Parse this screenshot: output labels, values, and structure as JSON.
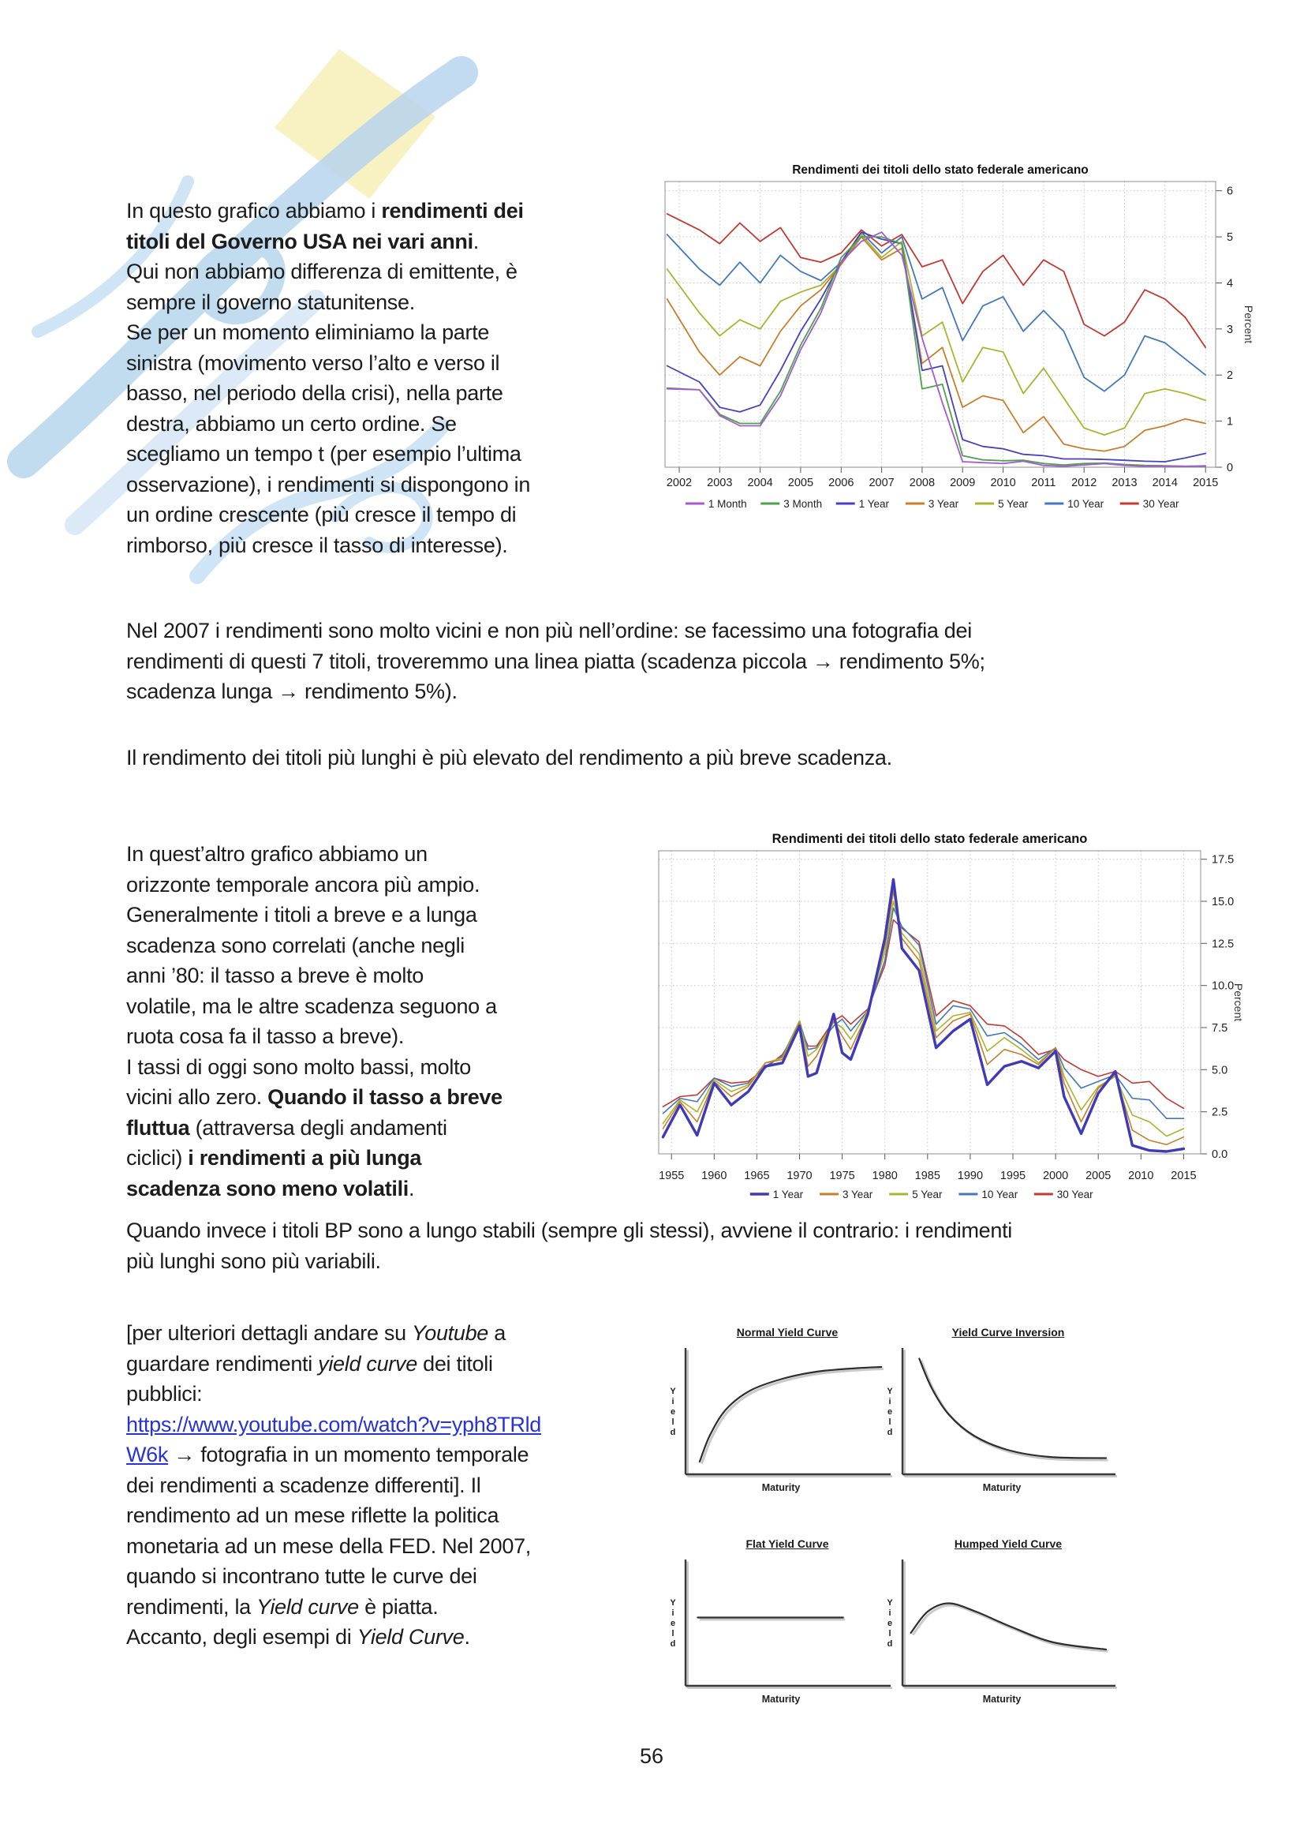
{
  "page": {
    "number": "56"
  },
  "colors": {
    "link": "#2733d6",
    "body_text": "#1c1c1c",
    "watermark_blue": "#b7d5ed",
    "watermark_yellow": "#f8f2c2",
    "chart_grid": "#c4c4c4"
  },
  "paragraphs": {
    "p1": [
      {
        "t": "In questo grafico abbiamo i "
      },
      {
        "t": "rendimenti dei\ntitoli del Governo USA nei vari anni",
        "b": 1
      },
      {
        "t": ".\nQui non abbiamo differenza di emittente, è\nsempre il governo statunitense.\nSe per un momento eliminiamo la parte\nsinistra (movimento verso l’alto e verso il\nbasso, nel periodo della crisi), nella parte\ndestra, abbiamo un certo ordine. Se\nscegliamo un tempo t (per esempio l’ultima\nosservazione), i rendimenti si dispongono in\nun ordine crescente (più cresce il tempo di\nrimborso, più cresce il tasso di interesse)."
      }
    ],
    "p2": [
      {
        "t": "Nel 2007 i rendimenti sono molto vicini e non più nell’ordine: se facessimo una fotografia dei\nrendimenti di questi 7 titoli, troveremmo una linea piatta (scadenza piccola "
      },
      {
        "t": "→",
        "b": 1
      },
      {
        "t": " rendimento 5%;\nscadenza lunga "
      },
      {
        "t": "→",
        "b": 1
      },
      {
        "t": " rendimento 5%)."
      }
    ],
    "p3": [
      {
        "t": "Il rendimento dei titoli più lunghi è più elevato del rendimento a più breve scadenza."
      }
    ],
    "p4a": [
      {
        "t": "In quest’altro grafico abbiamo un\norizzonte temporale ancora più ampio.\nGeneralmente i titoli a breve e a lunga\nscadenza sono correlati (anche negli\nanni ’80: il tasso a breve è molto\nvolatile, ma le altre scadenza seguono a\nruota cosa fa il tasso a breve).\nI tassi di oggi sono molto bassi, molto\nvicini allo zero. "
      },
      {
        "t": "Quando il tasso a breve\nfluttua",
        "b": 1
      },
      {
        "t": " (attraversa degli andamenti\nciclici) "
      },
      {
        "t": "i rendimenti a più lunga\nscadenza sono meno volatili",
        "b": 1
      },
      {
        "t": "."
      }
    ],
    "p4b": [
      {
        "t": "Quando invece i titoli BP sono a lungo stabili (sempre gli stessi), avviene il contrario: i rendimenti\npiù lunghi sono più variabili."
      }
    ],
    "p5": [
      {
        "t": "[per ulteriori dettagli andare su "
      },
      {
        "t": "Youtube",
        "i": 1
      },
      {
        "t": " a\nguardare rendimenti "
      },
      {
        "t": "yield curve",
        "i": 1
      },
      {
        "t": " dei titoli\npubblici:\n"
      },
      {
        "t": "https://www.youtube.com/watch?v=yph8TRld\nW6k",
        "link": 1
      },
      {
        "t": " "
      },
      {
        "t": "→",
        "b": 1
      },
      {
        "t": " fotografia in un momento temporale\ndei rendimenti a scadenze differenti]. Il\nrendimento ad un mese riflette la politica\nmonetaria ad un mese della FED. Nel 2007,\nquando si incontrano tutte le curve dei\nrendimenti, la "
      },
      {
        "t": "Yield curve",
        "i": 1
      },
      {
        "t": " è piatta.\nAccanto, degli esempi di "
      },
      {
        "t": "Yield Curve",
        "i": 1
      },
      {
        "t": "."
      }
    ]
  },
  "chart_data": [
    {
      "type": "line",
      "title": "Rendimenti dei titoli dello stato federale americano",
      "ylabel": "Percent",
      "ylabel_side": "right",
      "grid": true,
      "legend_position": "bottom",
      "xlim": [
        2001.65,
        2015.25
      ],
      "ylim": [
        0,
        6.2
      ],
      "xticks": [
        2002,
        2003,
        2004,
        2005,
        2006,
        2007,
        2008,
        2009,
        2010,
        2011,
        2012,
        2013,
        2014,
        2015
      ],
      "yticks": [
        0,
        1,
        2,
        3,
        4,
        5,
        6
      ],
      "ytick_labels": [
        "0",
        "1",
        "2",
        "3",
        "4",
        "5",
        "6"
      ],
      "x": [
        2001.7,
        2002.5,
        2003,
        2003.5,
        2004,
        2004.5,
        2005,
        2005.5,
        2006,
        2006.5,
        2007,
        2007.5,
        2008,
        2008.5,
        2009,
        2009.5,
        2010,
        2010.5,
        2011,
        2011.5,
        2012,
        2012.5,
        2013,
        2013.5,
        2014,
        2014.5,
        2015
      ],
      "series": [
        {
          "name": "1 Month",
          "color": "#a55bcd",
          "width": 1.8,
          "y": [
            1.7,
            1.68,
            1.12,
            0.9,
            0.9,
            1.55,
            2.55,
            3.35,
            4.45,
            4.9,
            5.1,
            4.6,
            2.8,
            1.4,
            0.12,
            0.1,
            0.08,
            0.13,
            0.04,
            0.02,
            0.05,
            0.08,
            0.04,
            0.02,
            0.02,
            0.02,
            0.02
          ]
        },
        {
          "name": "3 Month",
          "color": "#4ea24e",
          "width": 1.8,
          "y": [
            1.72,
            1.68,
            1.15,
            0.95,
            0.95,
            1.65,
            2.65,
            3.45,
            4.55,
            5.0,
            5.0,
            4.85,
            1.7,
            1.8,
            0.25,
            0.16,
            0.14,
            0.15,
            0.08,
            0.05,
            0.08,
            0.09,
            0.06,
            0.04,
            0.03,
            0.02,
            0.03
          ]
        },
        {
          "name": "1 Year",
          "color": "#4840c0",
          "width": 1.8,
          "y": [
            2.2,
            1.85,
            1.3,
            1.2,
            1.35,
            2.1,
            2.95,
            3.65,
            4.45,
            5.1,
            4.95,
            4.85,
            2.1,
            2.2,
            0.6,
            0.45,
            0.4,
            0.28,
            0.25,
            0.18,
            0.18,
            0.17,
            0.15,
            0.13,
            0.12,
            0.2,
            0.3
          ]
        },
        {
          "name": "3 Year",
          "color": "#c87f2a",
          "width": 1.8,
          "y": [
            3.65,
            2.5,
            2.0,
            2.4,
            2.2,
            2.95,
            3.5,
            3.85,
            4.4,
            5.0,
            4.5,
            4.75,
            2.25,
            2.6,
            1.3,
            1.55,
            1.45,
            0.75,
            1.1,
            0.5,
            0.4,
            0.35,
            0.45,
            0.8,
            0.9,
            1.05,
            0.95
          ]
        },
        {
          "name": "5 Year",
          "color": "#a9b52f",
          "width": 1.8,
          "y": [
            4.3,
            3.35,
            2.85,
            3.2,
            3.0,
            3.6,
            3.8,
            3.95,
            4.4,
            5.05,
            4.55,
            4.9,
            2.85,
            3.15,
            1.85,
            2.6,
            2.5,
            1.6,
            2.15,
            1.5,
            0.85,
            0.7,
            0.85,
            1.6,
            1.7,
            1.6,
            1.45
          ]
        },
        {
          "name": "10 Year",
          "color": "#4478bc",
          "width": 1.8,
          "y": [
            5.05,
            4.3,
            3.95,
            4.45,
            4.0,
            4.6,
            4.25,
            4.05,
            4.45,
            5.1,
            4.65,
            5.0,
            3.65,
            3.9,
            2.75,
            3.5,
            3.7,
            2.95,
            3.4,
            2.95,
            1.95,
            1.65,
            2.0,
            2.85,
            2.7,
            2.35,
            2.0
          ]
        },
        {
          "name": "30 Year",
          "color": "#c23a32",
          "width": 1.8,
          "y": [
            5.5,
            5.15,
            4.85,
            5.3,
            4.9,
            5.2,
            4.55,
            4.45,
            4.65,
            5.15,
            4.8,
            5.05,
            4.35,
            4.5,
            3.55,
            4.25,
            4.6,
            3.95,
            4.5,
            4.25,
            3.1,
            2.85,
            3.15,
            3.85,
            3.65,
            3.25,
            2.6
          ]
        }
      ]
    },
    {
      "type": "line",
      "title": "Rendimenti dei titoli dello stato federale americano",
      "ylabel": "Percent",
      "ylabel_side": "right",
      "grid": true,
      "legend_position": "bottom",
      "xlim": [
        1953.5,
        2017.0
      ],
      "ylim": [
        0,
        18
      ],
      "xticks": [
        1955,
        1960,
        1965,
        1970,
        1975,
        1980,
        1985,
        1990,
        1995,
        2000,
        2005,
        2010,
        2015
      ],
      "yticks": [
        0,
        2.5,
        5,
        7.5,
        10,
        12.5,
        15,
        17.5
      ],
      "ytick_labels": [
        "0.0",
        "2.5",
        "5.0",
        "7.5",
        "10.0",
        "12.5",
        "15.0",
        "17.5"
      ],
      "x": [
        1954,
        1956,
        1958,
        1960,
        1962,
        1964,
        1966,
        1968,
        1970,
        1971,
        1972,
        1974,
        1975,
        1976,
        1978,
        1980,
        1981,
        1982,
        1984,
        1986,
        1988,
        1990,
        1992,
        1994,
        1996,
        1998,
        2000,
        2001,
        2003,
        2005,
        2007,
        2009,
        2011,
        2013,
        2015
      ],
      "series": [
        {
          "name": "1 Year",
          "color": "#3f3ab8",
          "width": 3.4,
          "y": [
            1.0,
            2.9,
            1.1,
            4.2,
            2.9,
            3.7,
            5.2,
            5.4,
            7.6,
            4.6,
            4.8,
            8.3,
            6.0,
            5.6,
            8.3,
            12.8,
            16.3,
            12.2,
            10.9,
            6.3,
            7.3,
            8.0,
            4.1,
            5.2,
            5.5,
            5.1,
            6.1,
            3.4,
            1.2,
            3.6,
            4.9,
            0.5,
            0.2,
            0.14,
            0.3
          ]
        },
        {
          "name": "3 Year",
          "color": "#c87f2a",
          "width": 1.6,
          "y": [
            1.5,
            3.1,
            1.9,
            4.3,
            3.4,
            4.0,
            5.4,
            5.6,
            7.8,
            5.2,
            5.8,
            7.9,
            7.0,
            6.2,
            8.4,
            12.4,
            15.6,
            12.8,
            11.5,
            6.9,
            7.9,
            8.3,
            5.3,
            6.2,
            5.9,
            5.3,
            6.3,
            4.2,
            1.9,
            3.9,
            4.7,
            1.4,
            0.8,
            0.55,
            1.0
          ]
        },
        {
          "name": "5 Year",
          "color": "#a9b52f",
          "width": 1.6,
          "y": [
            1.8,
            3.2,
            2.5,
            4.4,
            3.7,
            4.1,
            5.4,
            5.7,
            7.9,
            5.8,
            6.2,
            7.8,
            7.5,
            6.8,
            8.5,
            12.0,
            15.0,
            13.1,
            11.9,
            7.3,
            8.2,
            8.4,
            6.1,
            6.9,
            6.2,
            5.4,
            6.3,
            4.6,
            2.6,
            4.0,
            4.6,
            2.3,
            1.9,
            1.05,
            1.5
          ]
        },
        {
          "name": "10 Year",
          "color": "#4478bc",
          "width": 1.6,
          "y": [
            2.4,
            3.3,
            3.1,
            4.5,
            4.0,
            4.2,
            5.2,
            5.8,
            7.9,
            6.2,
            6.3,
            7.6,
            8.0,
            7.3,
            8.5,
            11.5,
            14.6,
            13.5,
            12.4,
            7.7,
            8.8,
            8.6,
            7.0,
            7.2,
            6.5,
            5.6,
            6.3,
            5.1,
            3.9,
            4.3,
            4.7,
            3.3,
            3.2,
            2.1,
            2.1
          ]
        },
        {
          "name": "30 Year",
          "color": "#c23a32",
          "width": 1.6,
          "y": [
            2.8,
            3.4,
            3.5,
            4.5,
            4.2,
            4.3,
            5.1,
            5.9,
            7.6,
            6.4,
            6.4,
            7.9,
            8.2,
            7.7,
            8.6,
            11.2,
            13.9,
            13.4,
            12.6,
            8.2,
            9.1,
            8.8,
            7.7,
            7.6,
            6.9,
            5.9,
            6.2,
            5.6,
            5.0,
            4.6,
            4.9,
            4.2,
            4.3,
            3.3,
            2.7
          ]
        }
      ]
    },
    {
      "type": "line",
      "title": "Normal Yield Curve",
      "xlabel": "Maturity",
      "ylabel": "Yield",
      "points": [
        [
          0.07,
          0.08
        ],
        [
          0.12,
          0.3
        ],
        [
          0.2,
          0.52
        ],
        [
          0.32,
          0.68
        ],
        [
          0.48,
          0.78
        ],
        [
          0.65,
          0.84
        ],
        [
          0.85,
          0.87
        ],
        [
          0.97,
          0.88
        ]
      ]
    },
    {
      "type": "line",
      "title": "Yield Curve Inversion",
      "xlabel": "Maturity",
      "ylabel": "Yield",
      "points": [
        [
          0.08,
          0.95
        ],
        [
          0.14,
          0.7
        ],
        [
          0.22,
          0.48
        ],
        [
          0.34,
          0.3
        ],
        [
          0.5,
          0.18
        ],
        [
          0.7,
          0.12
        ],
        [
          0.97,
          0.11
        ]
      ]
    },
    {
      "type": "line",
      "title": "Flat Yield Curve",
      "xlabel": "Maturity",
      "ylabel": "Yield",
      "points": [
        [
          0.06,
          0.55
        ],
        [
          0.78,
          0.55
        ]
      ]
    },
    {
      "type": "line",
      "title": "Humped Yield Curve",
      "xlabel": "Maturity",
      "ylabel": "Yield",
      "points": [
        [
          0.04,
          0.42
        ],
        [
          0.12,
          0.6
        ],
        [
          0.22,
          0.67
        ],
        [
          0.35,
          0.6
        ],
        [
          0.52,
          0.47
        ],
        [
          0.72,
          0.34
        ],
        [
          0.97,
          0.28
        ]
      ]
    }
  ]
}
